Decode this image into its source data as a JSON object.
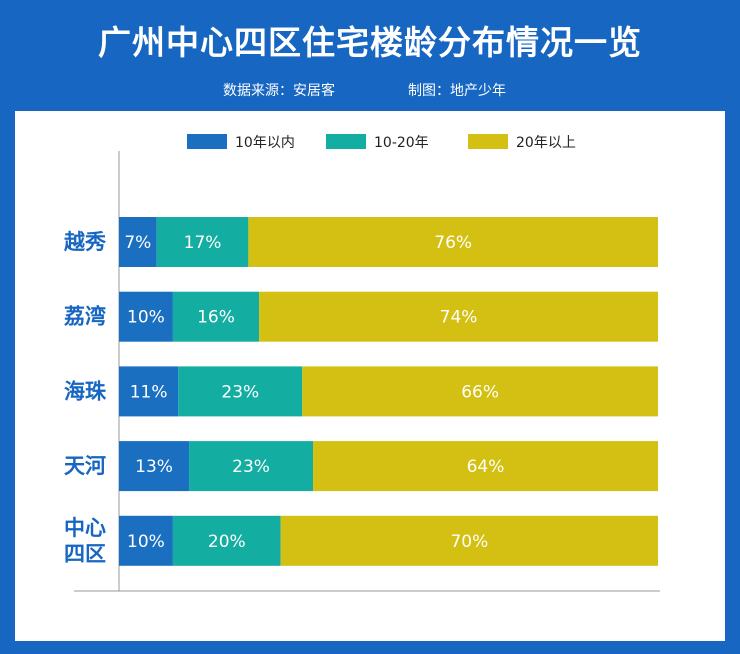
{
  "header": {
    "title": "广州中心四区住宅楼龄分布情况一览",
    "source": "数据来源：安居客",
    "made_by": "制图：地产少年"
  },
  "colors": {
    "background": "#1666c2",
    "series": [
      "#1a6fc0",
      "#13ada2",
      "#d3c012"
    ],
    "category_text": "#1666c2"
  },
  "chart_data": {
    "type": "bar",
    "orientation": "horizontal",
    "stacked": true,
    "percent": true,
    "title": "广州中心四区住宅楼龄分布情况一览",
    "categories": [
      "越秀",
      "荔湾",
      "海珠",
      "天河",
      "中心四区"
    ],
    "category_display": [
      [
        "越秀"
      ],
      [
        "荔湾"
      ],
      [
        "海珠"
      ],
      [
        "天河"
      ],
      [
        "中心",
        "四区"
      ]
    ],
    "series": [
      {
        "name": "10年以内",
        "values": [
          7,
          10,
          11,
          13,
          10
        ]
      },
      {
        "name": "10-20年",
        "values": [
          17,
          16,
          23,
          23,
          20
        ]
      },
      {
        "name": "20年以上",
        "values": [
          76,
          74,
          66,
          64,
          70
        ]
      }
    ],
    "value_suffix": "%",
    "xlim": [
      0,
      100
    ],
    "xlabel": "",
    "ylabel": "",
    "grid": false,
    "legend": "top"
  }
}
